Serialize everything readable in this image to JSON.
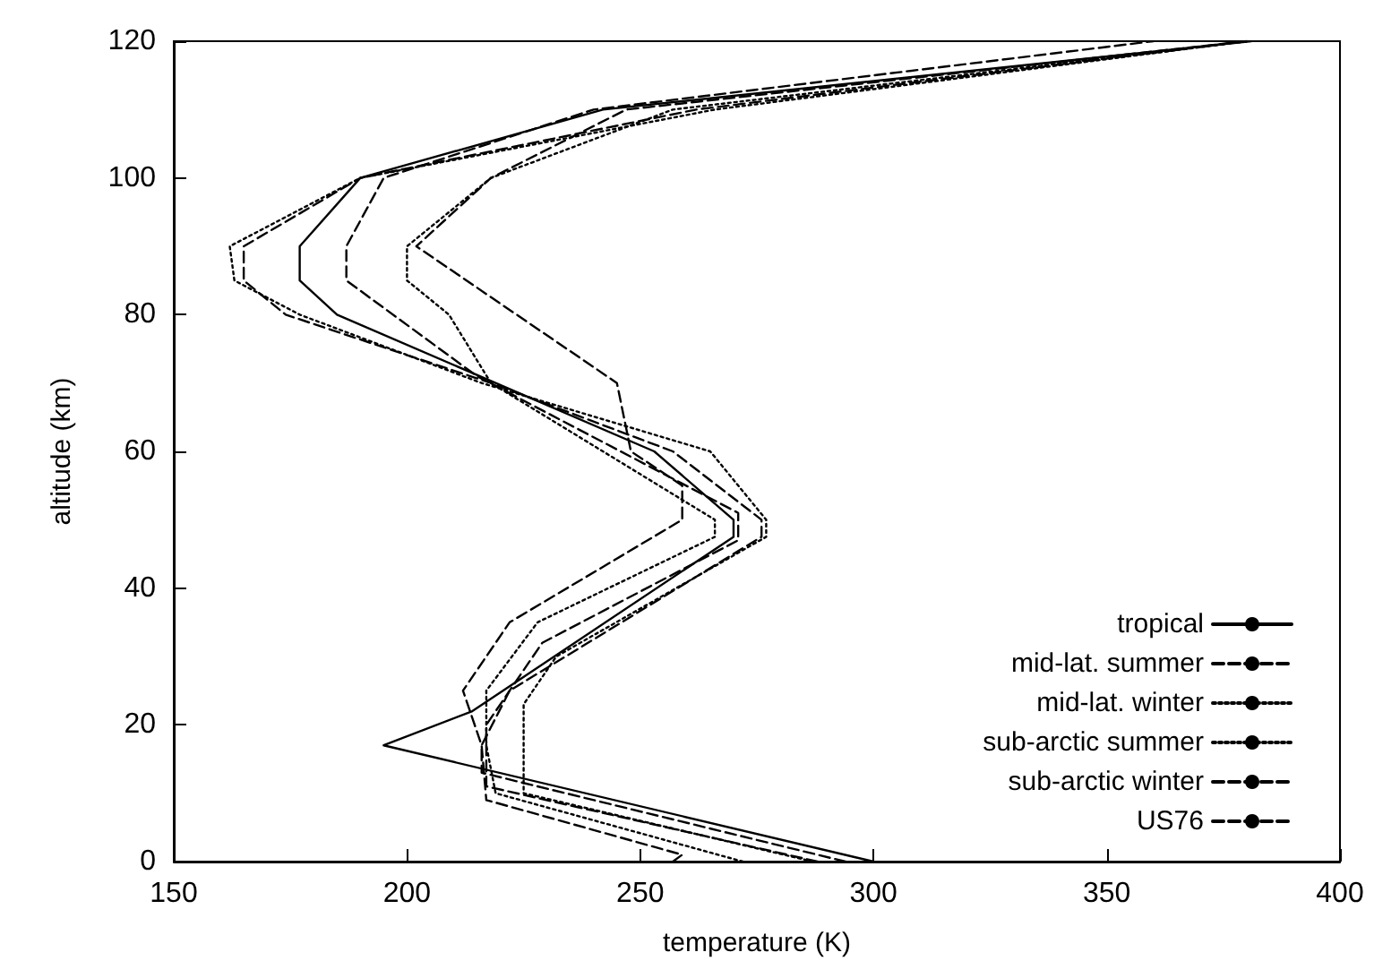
{
  "chart_data": {
    "type": "line",
    "xlabel": "temperature (K)",
    "ylabel": "altitude (km)",
    "xlim": [
      150,
      400
    ],
    "xticks": [
      150,
      200,
      250,
      300,
      350,
      400
    ],
    "ylim": [
      0,
      120
    ],
    "yticks": [
      0,
      20,
      40,
      60,
      80,
      100,
      120
    ],
    "grid": false,
    "legend": "bottom right",
    "marker": "none",
    "series": [
      {
        "name": "tropical",
        "color": "#000000",
        "line_style": "solid",
        "x": [
          300,
          195,
          214,
          270,
          270,
          253,
          219,
          185,
          177,
          177,
          190,
          242,
          381
        ],
        "values": [
          0,
          17,
          22,
          47.5,
          50,
          60,
          70,
          80,
          85,
          90,
          100,
          110,
          120
        ]
      },
      {
        "name": "mid-lat. summer",
        "color": "#000000",
        "line_style": "dashed",
        "x": [
          294,
          216,
          216,
          222,
          276,
          276,
          257,
          218,
          174,
          165,
          165,
          190,
          262,
          380
        ],
        "values": [
          0,
          13,
          17,
          25,
          47.5,
          50,
          60,
          70,
          80,
          85,
          90,
          100,
          110,
          120
        ]
      },
      {
        "name": "mid-lat. winter",
        "color": "#000000",
        "line_style": "dotted",
        "x": [
          272,
          219,
          217,
          217,
          228,
          266,
          266,
          242,
          218,
          209,
          200,
          200,
          218,
          257,
          380
        ],
        "values": [
          0,
          10,
          17,
          25,
          35,
          47.5,
          50,
          60,
          70,
          80,
          85,
          90,
          100,
          110,
          120
        ]
      },
      {
        "name": "sub-arctic summer",
        "color": "#000000",
        "line_style": "dotted",
        "x": [
          287,
          225,
          225,
          232,
          277,
          277,
          265,
          216,
          177,
          163,
          162,
          190,
          266,
          380
        ],
        "values": [
          0,
          10,
          23,
          30,
          47.5,
          50,
          60,
          70,
          80,
          85,
          90,
          100,
          110,
          120
        ]
      },
      {
        "name": "sub-arctic winter",
        "color": "#000000",
        "line_style": "dashed",
        "x": [
          257,
          259,
          217,
          216,
          212,
          222,
          259,
          259,
          248,
          245,
          202,
          218,
          247,
          380
        ],
        "values": [
          0,
          1,
          9,
          17,
          25,
          35,
          50,
          55,
          60,
          70,
          90,
          100,
          110,
          120
        ]
      },
      {
        "name": "US76",
        "color": "#000000",
        "line_style": "dashed",
        "x": [
          288,
          217,
          217,
          229,
          271,
          271,
          215,
          187,
          187,
          195,
          240,
          360
        ],
        "values": [
          0,
          11,
          20,
          32,
          47,
          51,
          71,
          85,
          90,
          100,
          110,
          120
        ]
      }
    ]
  }
}
